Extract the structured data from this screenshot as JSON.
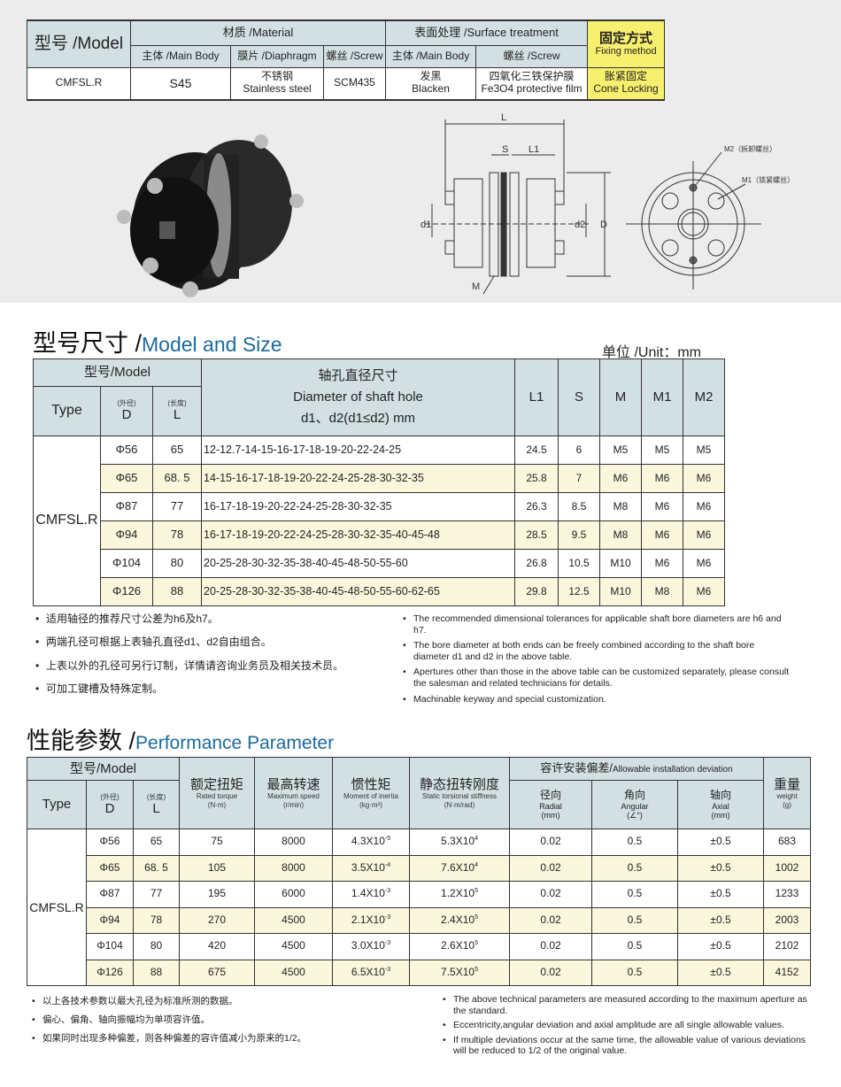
{
  "spec_table": {
    "model_header": "型号 /Model",
    "material_header": "材质 /Material",
    "surface_header": "表面处理 /Surface treatment",
    "fixing_header_cn": "固定方式",
    "fixing_header_en": "Fixing method",
    "sub": [
      "主体 /Main Body",
      "膜片 /Diaphragm",
      "螺丝 /Screw",
      "主体 /Main Body",
      "螺丝 /Screw"
    ],
    "model": "CMFSL.R",
    "main_body": "S45",
    "diaphragm_cn": "不锈钢",
    "diaphragm_en": "Stainless steel",
    "screw": "SCM435",
    "surface_body_cn": "发黑",
    "surface_body_en": "Blacken",
    "surface_screw_cn": "四氧化三铁保护膜",
    "surface_screw_en": "Fe3O4 protective film",
    "fixing_cn": "胀紧固定",
    "fixing_en": "Cone Locking",
    "colors": {
      "header": "#d3e0e3",
      "highlight": "#f7ef6e"
    }
  },
  "drawing": {
    "L": "L",
    "S": "S",
    "L1": "L1",
    "d1": "d1",
    "d2": "d2",
    "D": "D",
    "M": "M",
    "M2": "M2（拆卸螺丝）",
    "M1": "M1（锁紧螺丝）"
  },
  "size_section": {
    "title_cn": "型号尺寸 /",
    "title_en": "Model and Size",
    "unit": "单位 /Unit：mm",
    "h_model": "型号/Model",
    "h_type": "Type",
    "h_od": "(外径)",
    "h_D": "D",
    "h_len": "(长度)",
    "h_L": "L",
    "h_shaft1": "轴孔直径尺寸",
    "h_shaft2": "Diameter of shaft hole",
    "h_shaft3": "d1、d2(d1≤d2) mm",
    "h_L1": "L1",
    "h_S": "S",
    "h_M": "M",
    "h_M1": "M1",
    "h_M2": "M2",
    "type": "CMFSL.R",
    "rows": [
      {
        "D": "Φ56",
        "L": "65",
        "holes": "12-12.7-14-15-16-17-18-19-20-22-24-25",
        "L1": "24.5",
        "S": "6",
        "M": "M5",
        "M1": "M5",
        "M2": "M5"
      },
      {
        "D": "Φ65",
        "L": "68. 5",
        "holes": "14-15-16-17-18-19-20-22-24-25-28-30-32-35",
        "L1": "25.8",
        "S": "7",
        "M": "M6",
        "M1": "M6",
        "M2": "M6"
      },
      {
        "D": "Φ87",
        "L": "77",
        "holes": "16-17-18-19-20-22-24-25-28-30-32-35",
        "L1": "26.3",
        "S": "8.5",
        "M": "M8",
        "M1": "M6",
        "M2": "M6"
      },
      {
        "D": "Φ94",
        "L": "78",
        "holes": "16-17-18-19-20-22-24-25-28-30-32-35-40-45-48",
        "L1": "28.5",
        "S": "9.5",
        "M": "M8",
        "M1": "M6",
        "M2": "M6"
      },
      {
        "D": "Φ104",
        "L": "80",
        "holes": "20-25-28-30-32-35-38-40-45-48-50-55-60",
        "L1": "26.8",
        "S": "10.5",
        "M": "M10",
        "M1": "M6",
        "M2": "M6"
      },
      {
        "D": "Φ126",
        "L": "88",
        "holes": "20-25-28-30-32-35-38-40-45-48-50-55-60-62-65",
        "L1": "29.8",
        "S": "12.5",
        "M": "M10",
        "M1": "M8",
        "M2": "M6"
      }
    ],
    "notes_cn": [
      "适用轴径的推荐尺寸公差为h6及h7。",
      "两端孔径可根据上表轴孔直径d1、d2自由组合。",
      "上表以外的孔径可另行订制，详情请咨询业务员及相关技术员。",
      "可加工键槽及特殊定制。"
    ],
    "notes_en": [
      "The recommended dimensional tolerances for applicable shaft bore diameters are h6 and h7.",
      "The bore diameter at both ends can be freely combined according to the shaft bore diameter d1 and d2 in the above table.",
      "Apertures other than those in the above table can be customized separately, please consult the salesman and related technicians for details.",
      "Machinable keyway and special customization."
    ]
  },
  "perf_section": {
    "title_cn": "性能参数 /",
    "title_en": "Performance Parameter",
    "h_model": "型号/Model",
    "h_type": "Type",
    "h_od": "(外径)",
    "h_D": "D",
    "h_len": "(长度)",
    "h_L": "L",
    "h_torque_cn": "额定扭矩",
    "h_torque_en": "Rated torque",
    "h_torque_u": "(N·m)",
    "h_speed_cn": "最高转速",
    "h_speed_en": "Maximum speed",
    "h_speed_u": "(r/min)",
    "h_inertia_cn": "惯性矩",
    "h_inertia_en": "Moment of inertia",
    "h_inertia_u": "(kg·m²)",
    "h_stiff_cn": "静态扭转刚度",
    "h_stiff_en": "Static torsional stiffness",
    "h_stiff_u": "(N·m/rad)",
    "h_dev": "容许安装偏差/",
    "h_dev_en": "Allowable installation deviation",
    "h_radial_cn": "径向",
    "h_radial_en": "Radial",
    "h_radial_u": "(mm)",
    "h_ang_cn": "角向",
    "h_ang_en": "Angular",
    "h_ang_u": "(∠°)",
    "h_axial_cn": "轴向",
    "h_axial_en": "Axial",
    "h_axial_u": "(mm)",
    "h_weight_cn": "重量",
    "h_weight_en": "weight",
    "h_weight_u": "(g)",
    "type": "CMFSL.R",
    "rows": [
      {
        "D": "Φ56",
        "L": "65",
        "torque": "75",
        "speed": "8000",
        "inertia": "4.3X10",
        "inertia_exp": "-5",
        "stiff": "5.3X10",
        "stiff_exp": "4",
        "radial": "0.02",
        "angular": "0.5",
        "axial": "±0.5",
        "weight": "683"
      },
      {
        "D": "Φ65",
        "L": "68. 5",
        "torque": "105",
        "speed": "8000",
        "inertia": "3.5X10",
        "inertia_exp": "-4",
        "stiff": "7.6X10",
        "stiff_exp": "4",
        "radial": "0.02",
        "angular": "0.5",
        "axial": "±0.5",
        "weight": "1002"
      },
      {
        "D": "Φ87",
        "L": "77",
        "torque": "195",
        "speed": "6000",
        "inertia": "1.4X10",
        "inertia_exp": "-3",
        "stiff": "1.2X10",
        "stiff_exp": "5",
        "radial": "0.02",
        "angular": "0.5",
        "axial": "±0.5",
        "weight": "1233"
      },
      {
        "D": "Φ94",
        "L": "78",
        "torque": "270",
        "speed": "4500",
        "inertia": "2.1X10",
        "inertia_exp": "-3",
        "stiff": "2.4X10",
        "stiff_exp": "5",
        "radial": "0.02",
        "angular": "0.5",
        "axial": "±0.5",
        "weight": "2003"
      },
      {
        "D": "Φ104",
        "L": "80",
        "torque": "420",
        "speed": "4500",
        "inertia": "3.0X10",
        "inertia_exp": "-3",
        "stiff": "2.6X10",
        "stiff_exp": "5",
        "radial": "0.02",
        "angular": "0.5",
        "axial": "±0.5",
        "weight": "2102"
      },
      {
        "D": "Φ126",
        "L": "88",
        "torque": "675",
        "speed": "4500",
        "inertia": "6.5X10",
        "inertia_exp": "-3",
        "stiff": "7.5X10",
        "stiff_exp": "5",
        "radial": "0.02",
        "angular": "0.5",
        "axial": "±0.5",
        "weight": "4152"
      }
    ],
    "notes_cn": [
      "以上各技术参数以最大孔径为标准所测的数据。",
      "偏心、偏角、轴向振幅均为单项容许值。",
      "如果同时出现多种偏差，则各种偏差的容许值减小为原来的1/2。"
    ],
    "notes_en": [
      "The above technical parameters are measured according to the maximum aperture as the standard.",
      "Eccentricity,angular deviation and axial amplitude are all single allowable values.",
      "If multiple deviations occur at the same time, the allowable value of various deviations will be reduced to 1/2 of the original value."
    ]
  }
}
